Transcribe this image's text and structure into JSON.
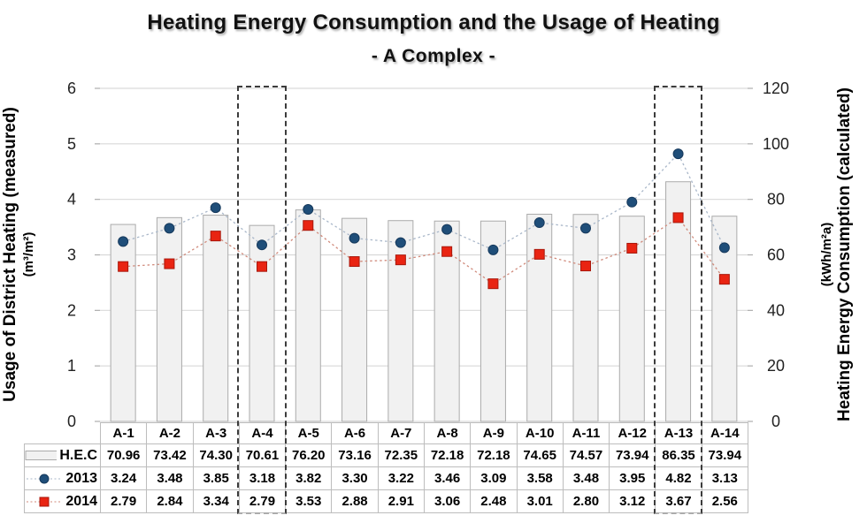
{
  "title": {
    "line1": "Heating Energy Consumption and the Usage of Heating",
    "line2": "- A Complex -"
  },
  "left_axis": {
    "title": "Usage of District Heating (measured)",
    "unit": "(m³/m²)",
    "ticks": [
      "0",
      "1",
      "2",
      "3",
      "4",
      "5",
      "6"
    ]
  },
  "right_axis": {
    "title": "Heating Energy Consumption (calculated)",
    "unit": "(kWh/m²a)",
    "ticks": [
      "0",
      "20",
      "40",
      "60",
      "80",
      "100",
      "120"
    ]
  },
  "chart_data": {
    "type": "combo (bar + line markers)",
    "categories": [
      "A-1",
      "A-2",
      "A-3",
      "A-4",
      "A-5",
      "A-6",
      "A-7",
      "A-8",
      "A-9",
      "A-10",
      "A-11",
      "A-12",
      "A-13",
      "A-14"
    ],
    "series": [
      {
        "name": "H.E.C",
        "type": "bar",
        "axis": "right",
        "values": [
          70.96,
          73.42,
          74.3,
          70.61,
          76.2,
          73.16,
          72.35,
          72.18,
          72.18,
          74.65,
          74.57,
          73.94,
          86.35,
          73.94
        ],
        "fill": "#f1f1f1",
        "stroke": "#ababab"
      },
      {
        "name": "2013",
        "type": "line",
        "axis": "left",
        "marker": "circle",
        "values": [
          3.24,
          3.48,
          3.85,
          3.18,
          3.82,
          3.3,
          3.22,
          3.46,
          3.09,
          3.58,
          3.48,
          3.95,
          4.82,
          3.13
        ],
        "marker_fill": "#1f4e79",
        "marker_stroke": "#16395c",
        "line_color": "#a9b7c9"
      },
      {
        "name": "2014",
        "type": "line",
        "axis": "left",
        "marker": "square",
        "values": [
          2.79,
          2.84,
          3.34,
          2.79,
          3.53,
          2.88,
          2.91,
          3.06,
          2.48,
          3.01,
          2.8,
          3.12,
          3.67,
          2.56
        ],
        "marker_fill": "#e92412",
        "marker_stroke": "#a8170b",
        "line_color": "#d08a7b"
      }
    ],
    "left_ylim": [
      0,
      6
    ],
    "right_ylim": [
      0,
      120
    ],
    "grid": "horizontal only",
    "grid_color": "#d9d9d9",
    "highlighted_categories": [
      "A-4",
      "A-13"
    ],
    "highlight_style": "black dashed rectangle through chart and table",
    "legend_position": "table row labels (left of table)"
  },
  "table": {
    "header": [
      "A-1",
      "A-2",
      "A-3",
      "A-4",
      "A-5",
      "A-6",
      "A-7",
      "A-8",
      "A-9",
      "A-10",
      "A-11",
      "A-12",
      "A-13",
      "A-14"
    ],
    "rows": [
      {
        "label": "H.E.C",
        "marker": "bar",
        "values": [
          "70.96",
          "73.42",
          "74.30",
          "70.61",
          "76.20",
          "73.16",
          "72.35",
          "72.18",
          "72.18",
          "74.65",
          "74.57",
          "73.94",
          "86.35",
          "73.94"
        ]
      },
      {
        "label": "2013",
        "marker": "circle",
        "values": [
          "3.24",
          "3.48",
          "3.85",
          "3.18",
          "3.82",
          "3.30",
          "3.22",
          "3.46",
          "3.09",
          "3.58",
          "3.48",
          "3.95",
          "4.82",
          "3.13"
        ]
      },
      {
        "label": "2014",
        "marker": "square",
        "values": [
          "2.79",
          "2.84",
          "3.34",
          "2.79",
          "3.53",
          "2.88",
          "2.91",
          "3.06",
          "2.48",
          "3.01",
          "2.80",
          "3.12",
          "3.67",
          "2.56"
        ]
      }
    ]
  }
}
